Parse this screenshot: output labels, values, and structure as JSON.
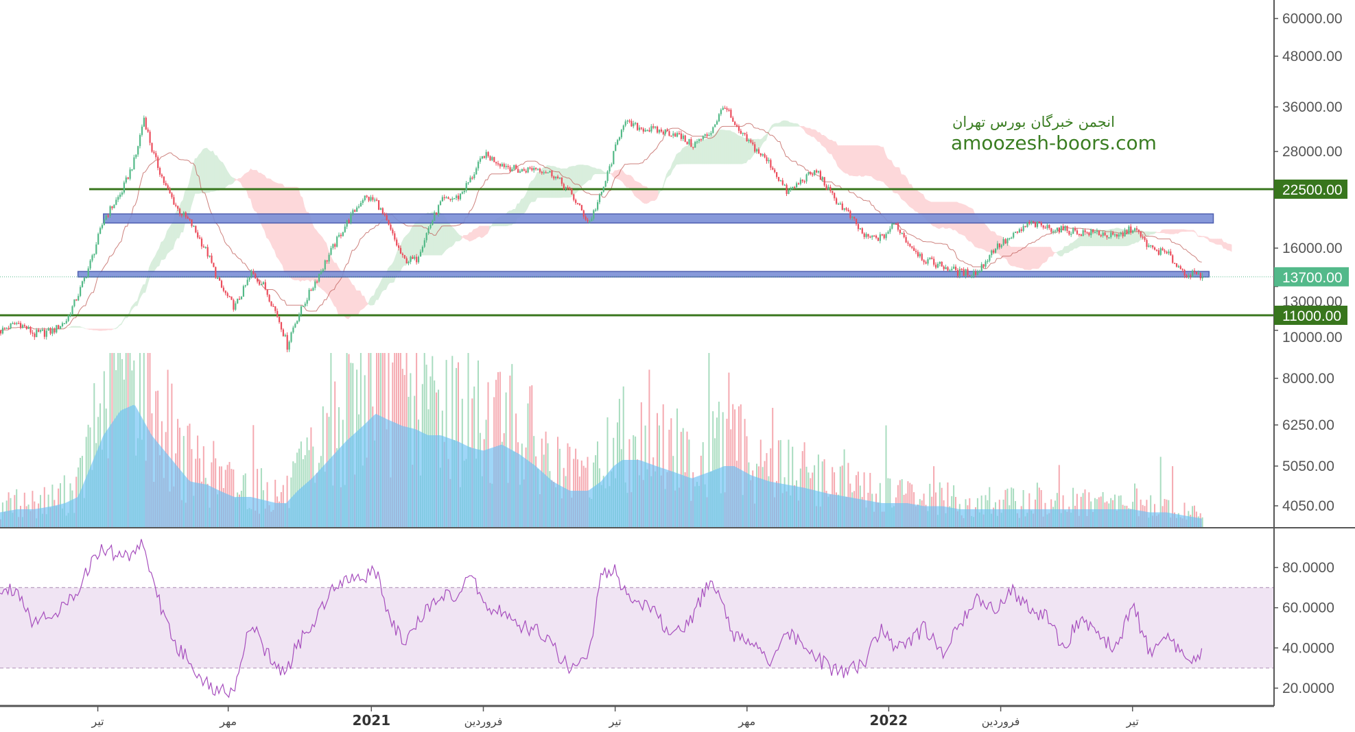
{
  "watermark": {
    "line1": "انجمن خبرگان بورس تهران",
    "line2": "amoozesh-boors.com"
  },
  "colors": {
    "up": "#53b987",
    "down": "#eb4d5c",
    "level_line": "#38761d",
    "zone_fill": "#7b8fd6",
    "zone_stroke": "#3d4fa8",
    "last_price": "#53b98a",
    "rsi_line": "#a64dbd",
    "rsi_band": "#f0e4f3",
    "volume_ma": "#6cc0f5",
    "cloud_up": "#d9eedd",
    "cloud_down": "#fdd8da",
    "kijun": "#c0625c"
  },
  "chart_data": [
    {
      "type": "candlestick",
      "pane": "price",
      "scale": "log",
      "y_ticks": [
        "60000.00",
        "48000.00",
        "36000.00",
        "28000.00",
        "16000.00",
        "13000.00",
        "10000.00",
        "8000.00",
        "6250.00",
        "5050.00",
        "4050.00"
      ],
      "y_tick_values": [
        60000,
        48000,
        36000,
        28000,
        16000,
        13000,
        10000,
        8000,
        6250,
        5050,
        4050
      ],
      "price_labels": [
        {
          "text": "22500.00",
          "value": 22500,
          "kind": "horizontal-line"
        },
        {
          "text": "13700.00",
          "value": 13700,
          "kind": "last-price"
        },
        {
          "text": "11000.00",
          "value": 11000,
          "kind": "horizontal-line"
        }
      ],
      "horizontal_lines": [
        22500,
        11000
      ],
      "zones": [
        {
          "low": 18500,
          "high": 19500,
          "from": "2020-06-26",
          "to": "2022-08-18"
        },
        {
          "low": 13700,
          "high": 14100,
          "from": "2020-06-08",
          "to": "2022-08-15"
        }
      ],
      "indicators": [
        "Ichimoku cloud",
        "Kijun-sen",
        "Volume",
        "Volume MA"
      ],
      "x_dates": [
        "2020-04-14",
        "2020-04-26",
        "2020-05-08",
        "2020-05-21",
        "2020-05-30",
        "2020-06-08",
        "2020-06-17",
        "2020-06-26",
        "2020-07-08",
        "2020-07-18",
        "2020-07-24",
        "2020-07-30",
        "2020-08-08",
        "2020-08-17",
        "2020-08-26",
        "2020-09-07",
        "2020-09-16",
        "2020-09-26",
        "2020-10-08",
        "2020-10-17",
        "2020-10-26",
        "2020-11-02",
        "2020-11-10",
        "2020-11-20",
        "2020-12-02",
        "2020-12-14",
        "2020-12-26",
        "2021-01-04",
        "2021-01-13",
        "2021-01-23",
        "2021-02-01",
        "2021-02-10",
        "2021-02-19",
        "2021-03-03",
        "2021-03-12",
        "2021-03-21",
        "2021-04-03",
        "2021-04-15",
        "2021-04-27",
        "2021-05-09",
        "2021-05-21",
        "2021-06-03",
        "2021-06-12",
        "2021-06-21",
        "2021-06-27",
        "2021-07-09",
        "2021-07-21",
        "2021-08-03",
        "2021-08-15",
        "2021-08-27",
        "2021-09-07",
        "2021-09-14",
        "2021-09-26",
        "2021-10-09",
        "2021-10-21",
        "2021-11-02",
        "2021-11-11",
        "2021-11-20",
        "2021-12-03",
        "2021-12-15",
        "2021-12-27",
        "2022-01-05",
        "2022-01-14",
        "2022-01-26",
        "2022-02-08",
        "2022-02-20",
        "2022-03-04",
        "2022-03-16",
        "2022-03-28",
        "2022-04-10",
        "2022-04-22",
        "2022-05-04",
        "2022-05-16",
        "2022-05-28",
        "2022-06-10",
        "2022-06-22",
        "2022-07-04",
        "2022-07-16",
        "2022-07-28",
        "2022-08-10"
      ],
      "close": [
        10000,
        10500,
        9800,
        10000,
        10600,
        12500,
        15000,
        19000,
        22000,
        27000,
        34000,
        28000,
        23000,
        20000,
        18500,
        15500,
        13000,
        11500,
        14000,
        13000,
        11000,
        9300,
        11000,
        13000,
        15500,
        18500,
        21500,
        21000,
        18000,
        15000,
        15000,
        18000,
        21000,
        21500,
        24000,
        27500,
        26000,
        25000,
        25500,
        24500,
        22000,
        18500,
        22000,
        28000,
        33000,
        32000,
        31500,
        31000,
        29000,
        31000,
        36500,
        32000,
        29000,
        26000,
        22000,
        24000,
        25000,
        22000,
        19500,
        17000,
        17000,
        18500,
        16500,
        15000,
        14500,
        14000,
        14000,
        16000,
        17000,
        18500,
        18000,
        17800,
        17500,
        17500,
        17000,
        18000,
        16000,
        15500,
        14000,
        13700
      ],
      "volume_ma_relative": [
        0.05,
        0.06,
        0.06,
        0.07,
        0.08,
        0.1,
        0.2,
        0.3,
        0.38,
        0.4,
        0.35,
        0.3,
        0.25,
        0.2,
        0.15,
        0.14,
        0.12,
        0.1,
        0.1,
        0.09,
        0.08,
        0.08,
        0.12,
        0.16,
        0.22,
        0.28,
        0.33,
        0.37,
        0.35,
        0.33,
        0.32,
        0.3,
        0.3,
        0.28,
        0.26,
        0.25,
        0.27,
        0.24,
        0.2,
        0.15,
        0.12,
        0.12,
        0.15,
        0.2,
        0.22,
        0.22,
        0.2,
        0.18,
        0.16,
        0.18,
        0.2,
        0.2,
        0.17,
        0.15,
        0.14,
        0.13,
        0.12,
        0.11,
        0.1,
        0.09,
        0.08,
        0.08,
        0.08,
        0.07,
        0.07,
        0.06,
        0.06,
        0.06,
        0.06,
        0.06,
        0.06,
        0.06,
        0.06,
        0.06,
        0.06,
        0.06,
        0.05,
        0.05,
        0.04,
        0.03
      ]
    },
    {
      "type": "line",
      "pane": "rsi",
      "y_ticks": [
        "80.0000",
        "60.0000",
        "40.0000",
        "20.0000"
      ],
      "y_tick_values": [
        80,
        60,
        40,
        20
      ],
      "band": [
        30,
        70
      ],
      "values": [
        68,
        70,
        52,
        58,
        60,
        70,
        82,
        90,
        85,
        88,
        93,
        75,
        55,
        40,
        33,
        22,
        18,
        20,
        52,
        40,
        30,
        28,
        42,
        50,
        68,
        76,
        75,
        78,
        58,
        42,
        50,
        60,
        68,
        62,
        78,
        62,
        58,
        50,
        50,
        40,
        30,
        35,
        75,
        80,
        70,
        62,
        57,
        45,
        55,
        72,
        60,
        45,
        45,
        32,
        48,
        40,
        35,
        30,
        28,
        32,
        50,
        40,
        42,
        50,
        38,
        50,
        65,
        58,
        70,
        60,
        55,
        40,
        55,
        45,
        40,
        62,
        38,
        45,
        35,
        37
      ]
    }
  ],
  "time_axis": [
    {
      "label": "تیر",
      "date": "2020-06-22",
      "year": false
    },
    {
      "label": "مهر",
      "date": "2020-09-22",
      "year": false
    },
    {
      "label": "2021",
      "date": "2021-01-01",
      "year": true
    },
    {
      "label": "فروردین",
      "date": "2021-03-21",
      "year": false
    },
    {
      "label": "تیر",
      "date": "2021-06-22",
      "year": false
    },
    {
      "label": "مهر",
      "date": "2021-09-23",
      "year": false
    },
    {
      "label": "2022",
      "date": "2022-01-01",
      "year": true
    },
    {
      "label": "فروردین",
      "date": "2022-03-21",
      "year": false
    },
    {
      "label": "تیر",
      "date": "2022-06-22",
      "year": false
    }
  ]
}
